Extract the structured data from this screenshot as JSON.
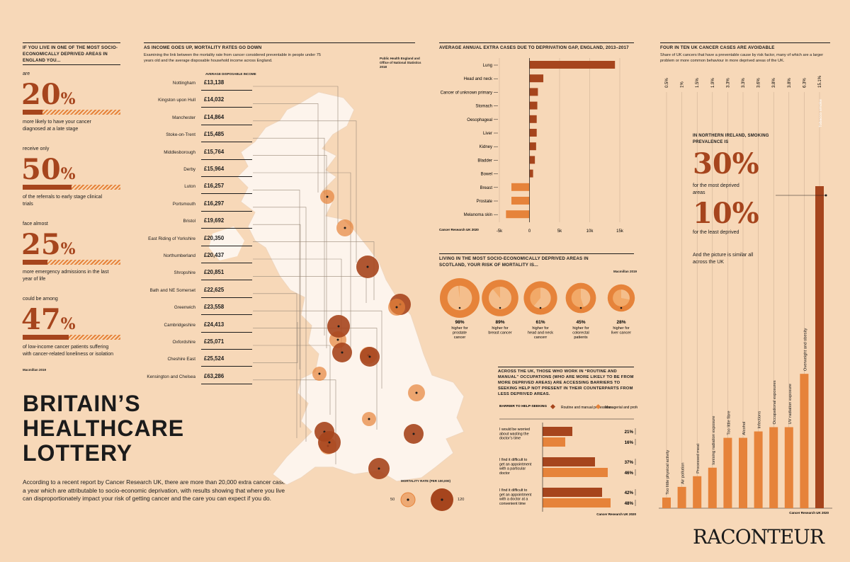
{
  "colors": {
    "bg": "#f7d8b8",
    "dark": "#a6451d",
    "orange": "#e6833a",
    "text": "#1b1b1b"
  },
  "left": {
    "header": "If you live in one of the most socio-economically deprived areas in England you...",
    "stats": [
      {
        "pre": "are",
        "pct": "20",
        "sign": "%",
        "desc": "more likely to have your cancer diagnosed at a late stage",
        "fill": 0.2
      },
      {
        "pre": "receive only",
        "pct": "50",
        "sign": "%",
        "desc": "of the referrals to early stage clinical trials",
        "fill": 0.5
      },
      {
        "pre": "face almost",
        "pct": "25",
        "sign": "%",
        "desc": "more emergency admissions in the last year of life",
        "fill": 0.25
      },
      {
        "pre": "could be among",
        "pct": "47",
        "sign": "%",
        "desc": "of low-income cancer patients suffering with cancer-related loneliness or isolation",
        "fill": 0.47
      }
    ],
    "source": "Macmillan 2019"
  },
  "title_lines": [
    "BRITAIN’S",
    "HEALTHCARE",
    "LOTTERY"
  ],
  "intro": "According to a recent report by Cancer Research UK, there are more than 20,000 extra cancer cases a year which are attributable to socio-economic deprivation, with results showing that where you live can disproportionately impact your risk of getting cancer and the care you can expect if you do.",
  "income": {
    "header": "As income goes up, mortality rates go down",
    "subtitle": "Examining the link between the mortality rate from cancer considered preventable in people under 75 years old and the average disposable household income across England.",
    "source": "Public Health England and Office of National Statistics 2018",
    "col_label": "Average disposable income",
    "legend_title": "Mortality rate (per 100,000)",
    "legend_min": "50",
    "legend_max": "120"
  },
  "chart_data": [
    {
      "type": "table",
      "title": "As income goes up, mortality rates go down",
      "columns": [
        "Area",
        "Average disposable income"
      ],
      "rows": [
        [
          "Nottingham",
          "£13,138"
        ],
        [
          "Kingston upon Hull",
          "£14,032"
        ],
        [
          "Manchester",
          "£14,864"
        ],
        [
          "Stoke-on-Trent",
          "£15,485"
        ],
        [
          "Middlesborough",
          "£15,764"
        ],
        [
          "Derby",
          "£15,964"
        ],
        [
          "Luton",
          "£16,257"
        ],
        [
          "Portsmouth",
          "£16,297"
        ],
        [
          "Bristol",
          "£19,692"
        ],
        [
          "East Riding of Yorkshire",
          "£20,350"
        ],
        [
          "Northumberland",
          "£20,437"
        ],
        [
          "Shropshire",
          "£20,851"
        ],
        [
          "Bath and NE Somerset",
          "£22,625"
        ],
        [
          "Greenwich",
          "£23,558"
        ],
        [
          "Cambridgeshire",
          "£24,413"
        ],
        [
          "Oxfordshire",
          "£25,071"
        ],
        [
          "Cheshire East",
          "£25,524"
        ],
        [
          "Kensington and Chelsea",
          "£63,286"
        ]
      ]
    },
    {
      "type": "bar",
      "title": "Average annual extra cases due to deprivation gap, England, 2013–2017",
      "categories": [
        "Lung",
        "Head and neck",
        "Cancer of unknown primary",
        "Stomach",
        "Oesophageal",
        "Liver",
        "Kidney",
        "Bladder",
        "Bowel",
        "Breast",
        "Prostate",
        "Melanoma skin"
      ],
      "values": [
        14200,
        2300,
        1400,
        1300,
        1200,
        1200,
        1100,
        900,
        600,
        -3000,
        -3000,
        -3900
      ],
      "xticks": [
        "-5k",
        "0",
        "5k",
        "10k",
        "15k"
      ],
      "xlim": [
        -5000,
        15000
      ],
      "source": "Cancer Research UK 2020"
    },
    {
      "type": "pie",
      "title": "Living in the most socio-economically deprived areas in Scotland, your risk of mortality is...",
      "items": [
        {
          "value": 98,
          "label": "98%",
          "desc": "higher for prostate cancer"
        },
        {
          "value": 89,
          "label": "89%",
          "desc": "higher for breast cancer"
        },
        {
          "value": 61,
          "label": "61%",
          "desc": "higher for head and neck cancerr"
        },
        {
          "value": 45,
          "label": "45%",
          "desc": "higher for colorectal patients"
        },
        {
          "value": 28,
          "label": "28%",
          "desc": "higher for liver cancer"
        }
      ],
      "source": "Macmillan 2019"
    },
    {
      "type": "bar",
      "title": "Across the UK, those who work in “routine and manual” occupations (who are more likely to be from more deprived areas) are accessing barriers to seeking help not present in their counterparts from less deprived areas.",
      "col_label": "Barrier to help-seeking",
      "series": [
        {
          "name": "Routine and manual professions",
          "values": [
            21,
            37,
            42
          ]
        },
        {
          "name": "Managerial and professional professions",
          "values": [
            16,
            46,
            48
          ]
        }
      ],
      "categories": [
        "I would be worried about wasting the doctor’s time",
        "I find it difficult to get an appointment with a particular doctor",
        "I find it difficult to get an appointment with a doctor at a convenient time"
      ],
      "source": "Cancer Research UK 2020"
    },
    {
      "type": "bar",
      "title": "Four in ten UK cancer cases are avoidable",
      "subtitle": "Share of UK cancers that have a preventable cause by risk factor, many of which are a larger problem or more common behaviour in more deprived areas of the UK.",
      "categories": [
        "Too little physical activity",
        "Air pollution",
        "Processed meat",
        "Ionising radiation exposure",
        "Too little fibre",
        "Alcohol",
        "Infections",
        "Occupational exposures",
        "UV radiation exposure",
        "Overweight and obesity",
        "Tobacco smoke"
      ],
      "values": [
        0.5,
        1,
        1.5,
        1.9,
        3.3,
        3.3,
        3.6,
        3.8,
        3.8,
        6.3,
        15.1
      ],
      "labels": [
        "0.5%",
        "1%",
        "1.5%",
        "1.9%",
        "3.3%",
        "3.3%",
        "3.6%",
        "3.8%",
        "3.8%",
        "6.3%",
        "15.1%"
      ],
      "source": "Cancer Research UK 2020"
    }
  ],
  "deprivation": {
    "header": "Average annual extra cases due to deprivation gap, England, 2013–2017"
  },
  "scotland": {
    "header": "Living in the most socio-economically deprived areas in Scotland, your risk of mortality is..."
  },
  "barriers": {
    "header": "Across the UK, those who work in “routine and manual” occupations (who are more likely to be from more deprived areas) are accessing barriers to seeking help not present in their counterparts from less deprived areas.",
    "col_label": "Barrier to help-seeking",
    "legend_dark": "Routine and manual professions",
    "legend_light": "Managerial and professional professions"
  },
  "avoidable": {
    "header": "Four in ten UK cancer cases are avoidable",
    "subtitle": "Share of UK cancers that have a preventable cause by risk factor, many of which are a larger problem or more common behaviour in more deprived areas of the UK.",
    "ni_header": "In Northern Ireland, smoking prevalence is",
    "ni_pct1": "30%",
    "ni_desc1": "for the most deprived areas",
    "ni_pct2": "10%",
    "ni_desc2": "for the least deprived",
    "ni_foot": "And the picture is similar all across the UK"
  },
  "logo": "RACONTEUR"
}
